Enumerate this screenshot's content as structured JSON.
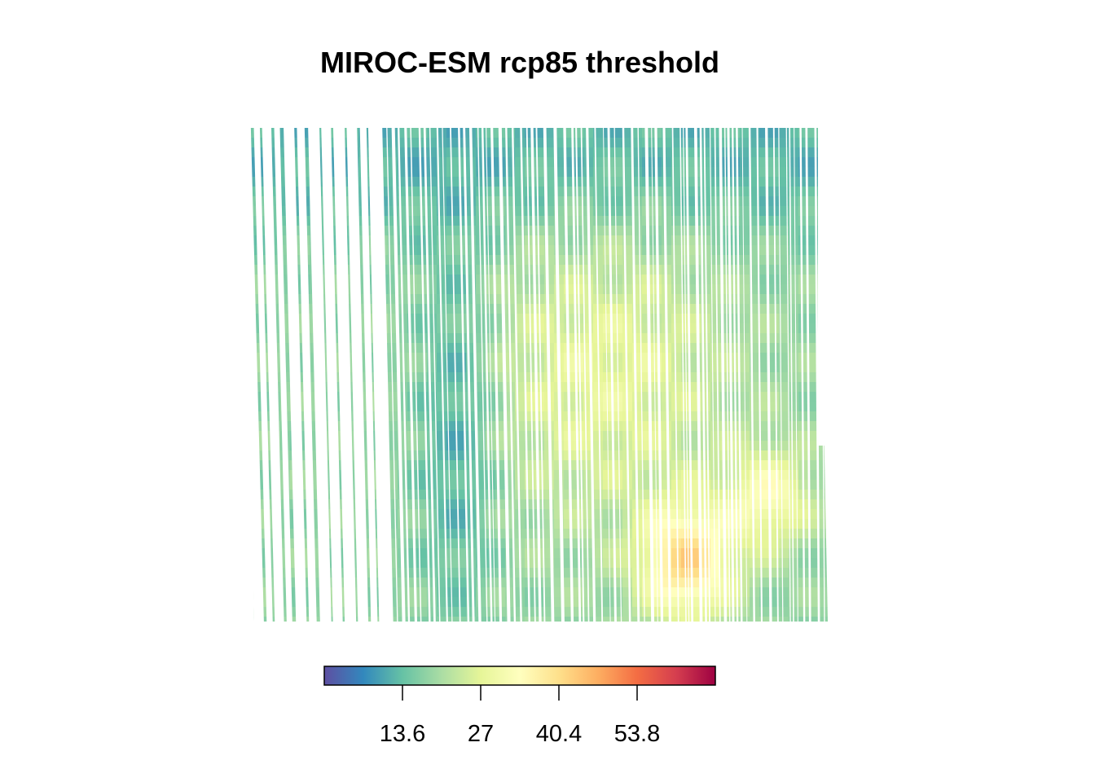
{
  "chart_data": {
    "type": "heatmap",
    "title": "MIROC-ESM rcp85 threshold",
    "xlabel": "",
    "ylabel": "",
    "colorbar": {
      "orientation": "horizontal",
      "placement": "bottom",
      "range": [
        0.2,
        67.2
      ],
      "ticks": [
        "13.6",
        "27",
        "40.4",
        "53.8"
      ],
      "tick_values": [
        13.6,
        27,
        40.4,
        53.8
      ],
      "palette": [
        "#5e4fa2",
        "#3288bd",
        "#66c2a5",
        "#abdda4",
        "#e6f598",
        "#ffffbf",
        "#fee08b",
        "#fdae61",
        "#f46d43",
        "#d53e4f",
        "#9e0142"
      ]
    },
    "grid": false,
    "approximate_field": {
      "note_regions": [
        {
          "region": "north-central",
          "value": 12
        },
        {
          "region": "west-central band",
          "value": 10
        },
        {
          "region": "center",
          "value": 26
        },
        {
          "region": "east-central",
          "value": 32
        },
        {
          "region": "south-central",
          "value": 44
        },
        {
          "region": "southeast",
          "value": 38
        }
      ]
    }
  }
}
